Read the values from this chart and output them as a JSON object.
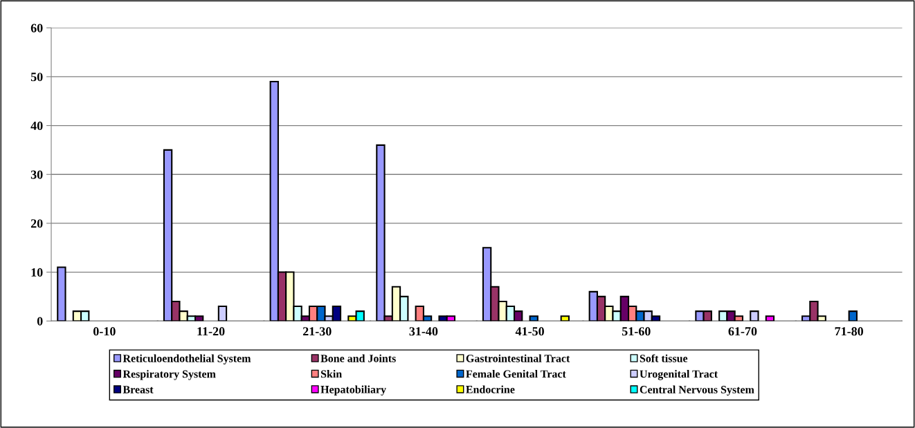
{
  "chart_data": {
    "type": "bar",
    "categories": [
      "0-10",
      "11-20",
      "21-30",
      "31-40",
      "41-50",
      "51-60",
      "61-70",
      "71-80"
    ],
    "series": [
      {
        "name": "Reticuloendothelial System",
        "color": "#9999ff",
        "values": [
          11,
          35,
          49,
          36,
          15,
          6,
          2,
          1
        ]
      },
      {
        "name": "Bone and Joints",
        "color": "#993366",
        "values": [
          0,
          4,
          10,
          1,
          7,
          5,
          2,
          4
        ]
      },
      {
        "name": "Gastrointestinal Tract",
        "color": "#ffffcc",
        "values": [
          2,
          2,
          10,
          7,
          4,
          3,
          0,
          1
        ]
      },
      {
        "name": "Soft tissue",
        "color": "#ccffff",
        "values": [
          2,
          1,
          3,
          5,
          3,
          2,
          2,
          0
        ]
      },
      {
        "name": "Respiratory System",
        "color": "#660066",
        "values": [
          0,
          1,
          1,
          0,
          2,
          5,
          2,
          0
        ]
      },
      {
        "name": "Skin",
        "color": "#ff8080",
        "values": [
          0,
          0,
          3,
          3,
          0,
          3,
          1,
          0
        ]
      },
      {
        "name": "Female Genital Tract",
        "color": "#0066cc",
        "values": [
          0,
          0,
          3,
          1,
          1,
          2,
          0,
          2
        ]
      },
      {
        "name": "Urogenital Tract",
        "color": "#ccccff",
        "values": [
          0,
          3,
          1,
          0,
          0,
          2,
          2,
          0
        ]
      },
      {
        "name": "Breast",
        "color": "#000080",
        "values": [
          0,
          0,
          3,
          1,
          0,
          1,
          0,
          0
        ]
      },
      {
        "name": "Hepatobiliary",
        "color": "#ff00ff",
        "values": [
          0,
          0,
          0,
          1,
          0,
          0,
          1,
          0
        ]
      },
      {
        "name": "Endocrine",
        "color": "#ffff00",
        "values": [
          0,
          0,
          1,
          0,
          1,
          0,
          0,
          0
        ]
      },
      {
        "name": "Central Nervous System",
        "color": "#00ffff",
        "values": [
          0,
          0,
          2,
          0,
          0,
          0,
          0,
          0
        ]
      }
    ],
    "ylim": [
      0,
      60
    ],
    "yticks": [
      0,
      10,
      20,
      30,
      40,
      50,
      60
    ],
    "grid": "y",
    "legend": "bottom"
  }
}
